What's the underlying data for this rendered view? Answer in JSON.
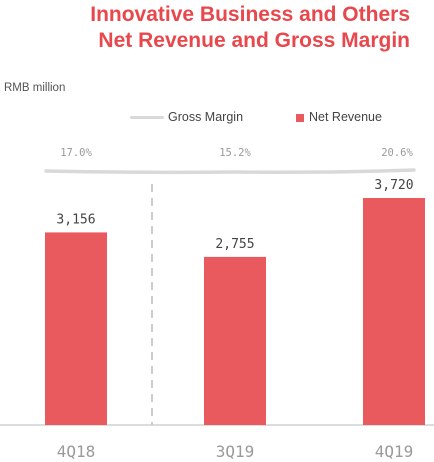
{
  "title_line1": "Innovative Business and Others",
  "title_line2": "Net Revenue and Gross Margin",
  "unit_label": "RMB million",
  "legend": {
    "line_label": "Gross Margin",
    "bar_label": "Net Revenue"
  },
  "colors": {
    "bar": "#e85a5e",
    "line": "#d9d9d9",
    "title": "#e8474c",
    "divider": "#cccccc"
  },
  "chart_data": {
    "type": "bar",
    "categories": [
      "4Q18",
      "3Q19",
      "4Q19"
    ],
    "series": [
      {
        "name": "Net Revenue",
        "values": [
          3156,
          2755,
          3720
        ],
        "labels": [
          "3,156",
          "2,755",
          "3,720"
        ]
      },
      {
        "name": "Gross Margin",
        "values": [
          17.0,
          15.2,
          20.6
        ],
        "labels": [
          "17.0%",
          "15.2%",
          "20.6%"
        ]
      }
    ],
    "ylim": [
      0,
      3720
    ]
  }
}
